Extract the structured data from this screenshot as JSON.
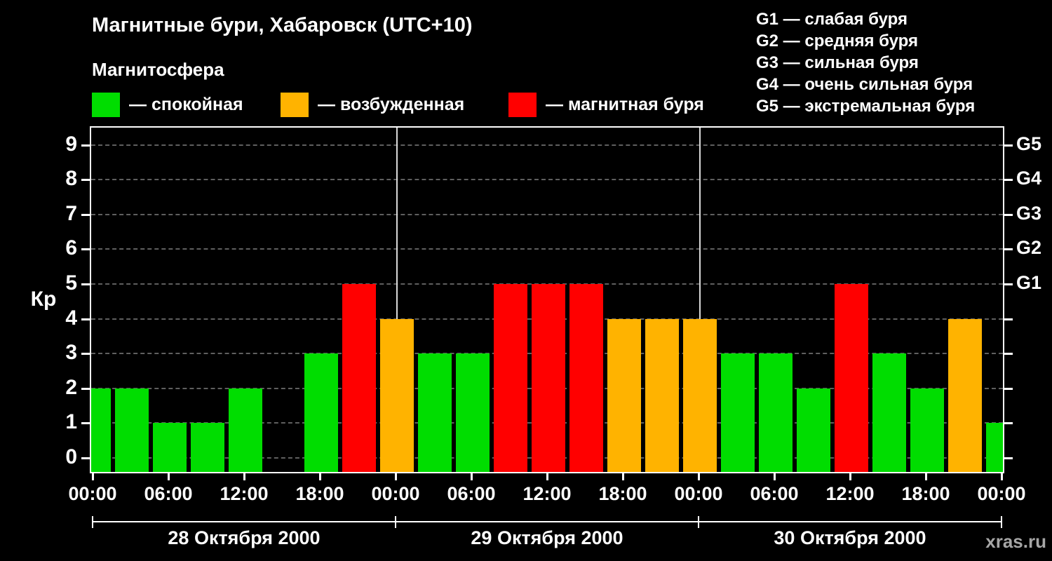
{
  "title": "Магнитные бури, Хабаровск (UTC+10)",
  "subtitle": "Магнитосфера",
  "legend": [
    {
      "label": "— спокойная",
      "color": "#00dd00"
    },
    {
      "label": "— возбужденная",
      "color": "#ffb300"
    },
    {
      "label": "— магнитная буря",
      "color": "#ff0000"
    }
  ],
  "g_legend": [
    "G1 — слабая буря",
    "G2 — средняя буря",
    "G3 — сильная буря",
    "G4 — очень сильная буря",
    "G5 — экстремальная буря"
  ],
  "watermark": "xras.ru",
  "chart_data": {
    "type": "bar",
    "title": "Магнитные бури, Хабаровск (UTC+10)",
    "ylabel": "Кр",
    "ylim": [
      -0.5,
      9.5
    ],
    "yticks": [
      0,
      1,
      2,
      3,
      4,
      5,
      6,
      7,
      8,
      9
    ],
    "grid": "dashed-horizontal",
    "right_axis": [
      {
        "value": 5,
        "label": "G1"
      },
      {
        "value": 6,
        "label": "G2"
      },
      {
        "value": 7,
        "label": "G3"
      },
      {
        "value": 8,
        "label": "G4"
      },
      {
        "value": 9,
        "label": "G5"
      }
    ],
    "palette": {
      "quiet": "#00dd00",
      "excited": "#ffb300",
      "storm": "#ff0000"
    },
    "color_rule": {
      "excited_min_kp": 4,
      "storm_min_kp": 5
    },
    "hours_span": 72,
    "points": [
      {
        "hour": 0,
        "kp": 2
      },
      {
        "hour": 3,
        "kp": 2
      },
      {
        "hour": 6,
        "kp": 1
      },
      {
        "hour": 9,
        "kp": 1
      },
      {
        "hour": 12,
        "kp": 2
      },
      {
        "hour": 15,
        "kp": null
      },
      {
        "hour": 18,
        "kp": 3
      },
      {
        "hour": 21,
        "kp": 5
      },
      {
        "hour": 24,
        "kp": 4
      },
      {
        "hour": 27,
        "kp": 3
      },
      {
        "hour": 30,
        "kp": 3
      },
      {
        "hour": 33,
        "kp": 5
      },
      {
        "hour": 36,
        "kp": 5
      },
      {
        "hour": 39,
        "kp": 5
      },
      {
        "hour": 42,
        "kp": 4
      },
      {
        "hour": 45,
        "kp": 4
      },
      {
        "hour": 48,
        "kp": 4
      },
      {
        "hour": 51,
        "kp": 3
      },
      {
        "hour": 54,
        "kp": 3
      },
      {
        "hour": 57,
        "kp": 2
      },
      {
        "hour": 60,
        "kp": 5
      },
      {
        "hour": 63,
        "kp": 3
      },
      {
        "hour": 66,
        "kp": 2
      },
      {
        "hour": 69,
        "kp": 4
      },
      {
        "hour": 72,
        "kp": 1
      }
    ],
    "xticks": [
      {
        "hour": 0,
        "label": "00:00"
      },
      {
        "hour": 6,
        "label": "06:00"
      },
      {
        "hour": 12,
        "label": "12:00"
      },
      {
        "hour": 18,
        "label": "18:00"
      },
      {
        "hour": 24,
        "label": "00:00"
      },
      {
        "hour": 30,
        "label": "06:00"
      },
      {
        "hour": 36,
        "label": "12:00"
      },
      {
        "hour": 42,
        "label": "18:00"
      },
      {
        "hour": 48,
        "label": "00:00"
      },
      {
        "hour": 54,
        "label": "06:00"
      },
      {
        "hour": 60,
        "label": "12:00"
      },
      {
        "hour": 66,
        "label": "18:00"
      },
      {
        "hour": 72,
        "label": "00:00"
      }
    ],
    "days": [
      {
        "label": "28 Октября 2000",
        "start_hour": 0,
        "end_hour": 24
      },
      {
        "label": "29 Октября 2000",
        "start_hour": 24,
        "end_hour": 48
      },
      {
        "label": "30 Октября 2000",
        "start_hour": 48,
        "end_hour": 72
      }
    ]
  }
}
